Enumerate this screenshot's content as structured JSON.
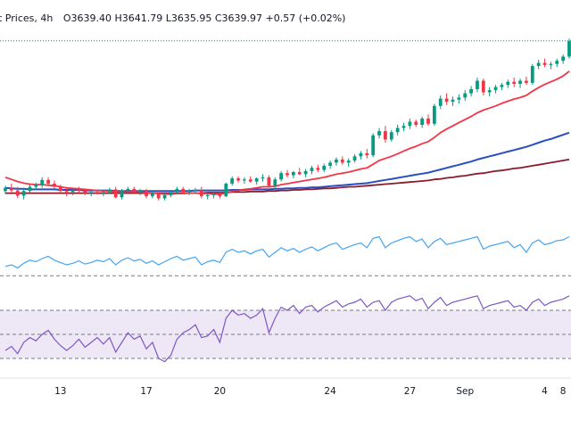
{
  "header": {
    "title": "t Prices, 4h",
    "ohlc": "O3639.40  H3641.79  L3635.95  C3639.97  +0.57 (+0.02%)"
  },
  "colors": {
    "up": "#089981",
    "down": "#f23645",
    "ema_fast": "#f23645",
    "ema_mid": "#2a4fbf",
    "ema_slow": "#8b1a2b",
    "rsi": "#42a5f5",
    "stoch": "#7e57c2",
    "stoch_band": "#ede7f6"
  },
  "chart_data": [
    {
      "type": "candlestick",
      "title": "t Prices, 4h",
      "x": [
        "13",
        "17",
        "20",
        "24",
        "27",
        "Sep",
        "4",
        "8"
      ],
      "open": 3639.4,
      "high": 3641.79,
      "low": 3635.95,
      "close": 3639.97,
      "change": 0.57,
      "change_pct": "+0.02%",
      "ylim": [
        3300,
        3660
      ],
      "last_close_line": 3639.97,
      "candles": [
        [
          3354,
          3364,
          3348,
          3360
        ],
        [
          3360,
          3368,
          3352,
          3355
        ],
        [
          3355,
          3362,
          3340,
          3345
        ],
        [
          3345,
          3358,
          3338,
          3354
        ],
        [
          3354,
          3366,
          3350,
          3362
        ],
        [
          3362,
          3370,
          3356,
          3366
        ],
        [
          3366,
          3380,
          3360,
          3375
        ],
        [
          3375,
          3380,
          3364,
          3368
        ],
        [
          3368,
          3374,
          3358,
          3362
        ],
        [
          3362,
          3366,
          3350,
          3354
        ],
        [
          3354,
          3360,
          3344,
          3352
        ],
        [
          3352,
          3358,
          3346,
          3356
        ],
        [
          3356,
          3362,
          3350,
          3354
        ],
        [
          3354,
          3358,
          3346,
          3350
        ],
        [
          3350,
          3356,
          3344,
          3352
        ],
        [
          3352,
          3357,
          3347,
          3350
        ],
        [
          3350,
          3356,
          3344,
          3352
        ],
        [
          3352,
          3360,
          3348,
          3357
        ],
        [
          3357,
          3362,
          3340,
          3342
        ],
        [
          3342,
          3358,
          3338,
          3355
        ],
        [
          3355,
          3362,
          3350,
          3358
        ],
        [
          3358,
          3362,
          3348,
          3352
        ],
        [
          3352,
          3358,
          3346,
          3354
        ],
        [
          3354,
          3358,
          3340,
          3344
        ],
        [
          3344,
          3354,
          3340,
          3350
        ],
        [
          3350,
          3354,
          3336,
          3340
        ],
        [
          3340,
          3350,
          3336,
          3346
        ],
        [
          3346,
          3356,
          3342,
          3352
        ],
        [
          3352,
          3362,
          3348,
          3358
        ],
        [
          3358,
          3362,
          3350,
          3352
        ],
        [
          3352,
          3358,
          3346,
          3354
        ],
        [
          3354,
          3360,
          3348,
          3356
        ],
        [
          3356,
          3362,
          3340,
          3344
        ],
        [
          3344,
          3350,
          3338,
          3346
        ],
        [
          3346,
          3352,
          3340,
          3348
        ],
        [
          3348,
          3352,
          3340,
          3344
        ],
        [
          3344,
          3370,
          3342,
          3368
        ],
        [
          3368,
          3382,
          3364,
          3378
        ],
        [
          3378,
          3382,
          3370,
          3374
        ],
        [
          3374,
          3380,
          3368,
          3376
        ],
        [
          3376,
          3382,
          3370,
          3372
        ],
        [
          3372,
          3380,
          3366,
          3378
        ],
        [
          3378,
          3386,
          3372,
          3380
        ],
        [
          3380,
          3384,
          3360,
          3364
        ],
        [
          3364,
          3380,
          3360,
          3376
        ],
        [
          3376,
          3392,
          3372,
          3388
        ],
        [
          3388,
          3394,
          3380,
          3384
        ],
        [
          3384,
          3392,
          3378,
          3390
        ],
        [
          3390,
          3398,
          3384,
          3386
        ],
        [
          3386,
          3396,
          3380,
          3392
        ],
        [
          3392,
          3402,
          3386,
          3398
        ],
        [
          3398,
          3404,
          3390,
          3394
        ],
        [
          3394,
          3406,
          3390,
          3402
        ],
        [
          3402,
          3412,
          3396,
          3408
        ],
        [
          3408,
          3418,
          3402,
          3414
        ],
        [
          3414,
          3420,
          3404,
          3408
        ],
        [
          3408,
          3416,
          3400,
          3412
        ],
        [
          3412,
          3424,
          3408,
          3420
        ],
        [
          3420,
          3430,
          3414,
          3426
        ],
        [
          3426,
          3434,
          3416,
          3422
        ],
        [
          3422,
          3464,
          3418,
          3460
        ],
        [
          3460,
          3474,
          3454,
          3468
        ],
        [
          3468,
          3478,
          3446,
          3452
        ],
        [
          3452,
          3470,
          3448,
          3466
        ],
        [
          3466,
          3480,
          3460,
          3474
        ],
        [
          3474,
          3484,
          3468,
          3478
        ],
        [
          3478,
          3492,
          3472,
          3486
        ],
        [
          3486,
          3490,
          3476,
          3480
        ],
        [
          3480,
          3496,
          3474,
          3492
        ],
        [
          3492,
          3500,
          3478,
          3482
        ],
        [
          3482,
          3520,
          3478,
          3516
        ],
        [
          3516,
          3536,
          3510,
          3530
        ],
        [
          3530,
          3540,
          3518,
          3524
        ],
        [
          3524,
          3534,
          3516,
          3528
        ],
        [
          3528,
          3538,
          3520,
          3532
        ],
        [
          3532,
          3546,
          3526,
          3540
        ],
        [
          3540,
          3554,
          3534,
          3548
        ],
        [
          3548,
          3570,
          3542,
          3564
        ],
        [
          3564,
          3568,
          3536,
          3542
        ],
        [
          3542,
          3552,
          3534,
          3546
        ],
        [
          3546,
          3556,
          3540,
          3552
        ],
        [
          3552,
          3560,
          3546,
          3556
        ],
        [
          3556,
          3566,
          3550,
          3562
        ],
        [
          3562,
          3570,
          3552,
          3558
        ],
        [
          3558,
          3568,
          3550,
          3564
        ],
        [
          3564,
          3572,
          3556,
          3560
        ],
        [
          3560,
          3596,
          3556,
          3592
        ],
        [
          3592,
          3604,
          3586,
          3598
        ],
        [
          3598,
          3606,
          3590,
          3594
        ],
        [
          3594,
          3600,
          3586,
          3596
        ],
        [
          3596,
          3606,
          3590,
          3602
        ],
        [
          3602,
          3614,
          3596,
          3610
        ],
        [
          3610,
          3644,
          3606,
          3639.4
        ]
      ],
      "ema_fast": [
        3380,
        3376,
        3372,
        3369,
        3367,
        3366,
        3366,
        3365,
        3364,
        3362,
        3360,
        3359,
        3358,
        3357,
        3356,
        3355,
        3354,
        3354,
        3352,
        3352,
        3352,
        3352,
        3352,
        3351,
        3350,
        3349,
        3348,
        3348,
        3349,
        3349,
        3350,
        3350,
        3349,
        3349,
        3348,
        3348,
        3350,
        3353,
        3355,
        3357,
        3358,
        3360,
        3362,
        3362,
        3363,
        3366,
        3368,
        3370,
        3372,
        3374,
        3376,
        3378,
        3380,
        3383,
        3386,
        3388,
        3390,
        3393,
        3396,
        3398,
        3405,
        3412,
        3416,
        3420,
        3425,
        3430,
        3435,
        3439,
        3444,
        3448,
        3456,
        3465,
        3472,
        3478,
        3484,
        3490,
        3496,
        3503,
        3508,
        3512,
        3516,
        3521,
        3525,
        3529,
        3532,
        3536,
        3544,
        3551,
        3557,
        3562,
        3567,
        3573,
        3582
      ],
      "ema_mid": [
        3360,
        3359,
        3358,
        3358,
        3357,
        3357,
        3357,
        3357,
        3357,
        3356,
        3356,
        3356,
        3356,
        3355,
        3355,
        3355,
        3355,
        3355,
        3354,
        3354,
        3354,
        3354,
        3354,
        3354,
        3354,
        3354,
        3354,
        3354,
        3354,
        3354,
        3354,
        3355,
        3355,
        3355,
        3355,
        3355,
        3355,
        3356,
        3356,
        3356,
        3357,
        3357,
        3357,
        3357,
        3358,
        3358,
        3359,
        3359,
        3360,
        3360,
        3361,
        3361,
        3362,
        3363,
        3364,
        3365,
        3366,
        3367,
        3368,
        3369,
        3371,
        3373,
        3375,
        3377,
        3379,
        3381,
        3383,
        3385,
        3387,
        3389,
        3392,
        3395,
        3398,
        3401,
        3404,
        3407,
        3410,
        3414,
        3417,
        3420,
        3423,
        3426,
        3429,
        3432,
        3435,
        3438,
        3442,
        3446,
        3450,
        3453,
        3457,
        3461,
        3465
      ],
      "ema_slow": [
        3350,
        3350,
        3350,
        3350,
        3350,
        3350,
        3350,
        3350,
        3350,
        3350,
        3350,
        3350,
        3350,
        3350,
        3350,
        3350,
        3350,
        3350,
        3350,
        3350,
        3350,
        3350,
        3350,
        3350,
        3350,
        3350,
        3350,
        3350,
        3350,
        3350,
        3350,
        3350,
        3350,
        3351,
        3351,
        3351,
        3351,
        3352,
        3352,
        3352,
        3353,
        3353,
        3353,
        3354,
        3354,
        3355,
        3355,
        3356,
        3356,
        3357,
        3357,
        3358,
        3359,
        3359,
        3360,
        3361,
        3362,
        3362,
        3363,
        3364,
        3365,
        3366,
        3367,
        3368,
        3369,
        3370,
        3371,
        3372,
        3373,
        3374,
        3376,
        3377,
        3379,
        3380,
        3382,
        3383,
        3385,
        3387,
        3388,
        3390,
        3392,
        3393,
        3395,
        3397,
        3398,
        3400,
        3402,
        3404,
        3406,
        3408,
        3410,
        3412,
        3414
      ]
    },
    {
      "type": "line",
      "series": [
        {
          "values": [
            42,
            44,
            40,
            46,
            50,
            48,
            52,
            55,
            50,
            47,
            44,
            46,
            49,
            45,
            47,
            50,
            48,
            52,
            44,
            50,
            53,
            49,
            51,
            46,
            49,
            44,
            48,
            52,
            55,
            50,
            52,
            54,
            44,
            48,
            50,
            47,
            60,
            64,
            60,
            62,
            58,
            62,
            64,
            54,
            60,
            66,
            62,
            65,
            60,
            64,
            67,
            62,
            66,
            70,
            72,
            64,
            67,
            70,
            72,
            66,
            78,
            80,
            66,
            72,
            75,
            78,
            80,
            74,
            77,
            66,
            74,
            78,
            70,
            72,
            74,
            76,
            78,
            80,
            64,
            68,
            70,
            72,
            74,
            66,
            70,
            60,
            72,
            76,
            70,
            72,
            75,
            76,
            80
          ]
        }
      ],
      "levels": [
        30
      ],
      "ylim": [
        20,
        100
      ]
    },
    {
      "type": "line",
      "series": [
        {
          "values": [
            30,
            35,
            26,
            40,
            46,
            42,
            50,
            55,
            44,
            36,
            30,
            36,
            44,
            34,
            40,
            46,
            38,
            46,
            28,
            40,
            52,
            44,
            48,
            32,
            40,
            20,
            16,
            24,
            44,
            52,
            56,
            62,
            46,
            48,
            56,
            40,
            70,
            80,
            74,
            76,
            70,
            74,
            82,
            52,
            70,
            84,
            80,
            86,
            76,
            84,
            86,
            78,
            84,
            88,
            92,
            84,
            88,
            90,
            94,
            84,
            90,
            92,
            80,
            90,
            94,
            96,
            98,
            92,
            95,
            82,
            90,
            96,
            86,
            90,
            92,
            94,
            96,
            98,
            82,
            86,
            88,
            90,
            92,
            84,
            86,
            80,
            90,
            94,
            86,
            90,
            92,
            94,
            98
          ]
        }
      ],
      "levels": [
        80,
        50,
        20
      ],
      "ylim": [
        0,
        100
      ]
    }
  ]
}
